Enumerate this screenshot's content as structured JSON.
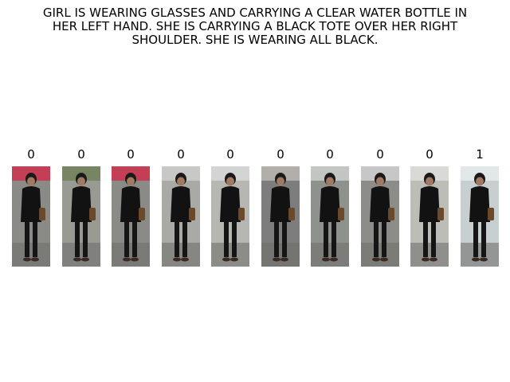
{
  "caption": {
    "lines": [
      "GIRL IS WEARING GLASSES AND CARRYING A CLEAR WATER BOTTLE IN",
      "HER LEFT HAND.  SHE IS CARRYING A BLACK TOTE OVER HER RIGHT",
      "SHOULDER.  SHE IS WEARING ALL BLACK."
    ]
  },
  "gallery": {
    "items": [
      {
        "label": "0",
        "bg": "#8a8a86",
        "accent": "#d22a4a"
      },
      {
        "label": "0",
        "bg": "#9a9a94",
        "accent": "#6e7f55"
      },
      {
        "label": "0",
        "bg": "#8a8a86",
        "accent": "#d22a4a"
      },
      {
        "label": "0",
        "bg": "#a9a9a5",
        "accent": "#cfcfcf"
      },
      {
        "label": "0",
        "bg": "#b6b6b3",
        "accent": "#dcdcdc"
      },
      {
        "label": "0",
        "bg": "#7c7d7c",
        "accent": "#bfbcb6"
      },
      {
        "label": "0",
        "bg": "#8f918f",
        "accent": "#cfd2cf"
      },
      {
        "label": "0",
        "bg": "#8c8c8a",
        "accent": "#d6d6d6"
      },
      {
        "label": "0",
        "bg": "#bdbdb8",
        "accent": "#e0e0dc"
      },
      {
        "label": "1",
        "bg": "#c9cfd1",
        "accent": "#e8ecee"
      }
    ]
  }
}
